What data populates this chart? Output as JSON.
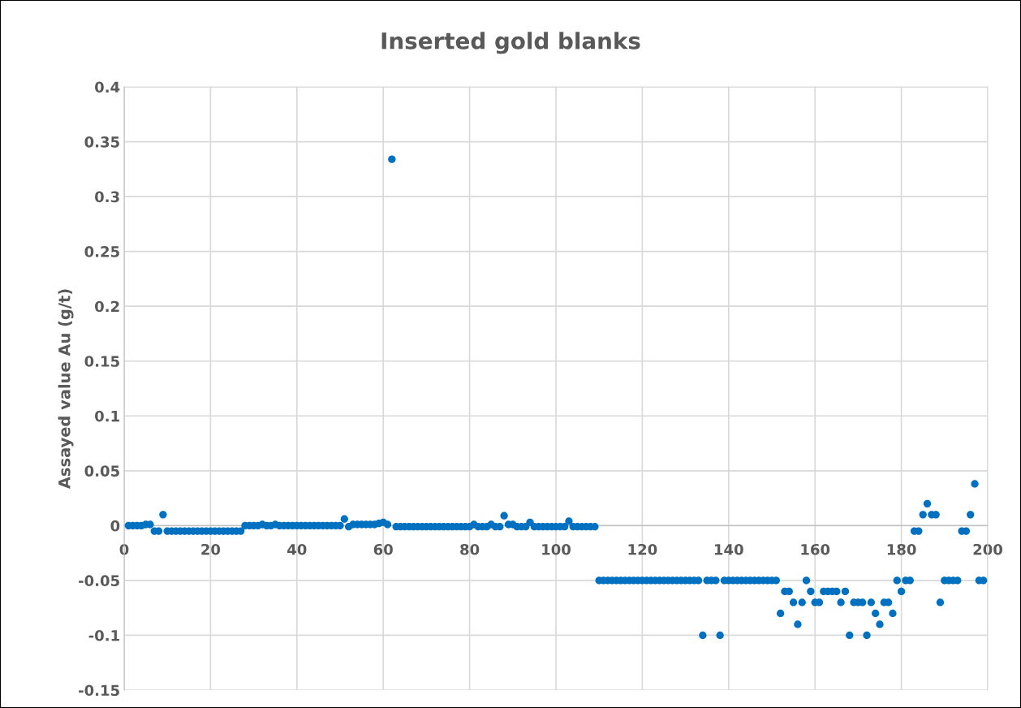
{
  "chart_data": {
    "type": "scatter",
    "title": "Inserted gold blanks",
    "ylabel": "Assayed value Au (g/t)",
    "x": [
      1,
      2,
      3,
      4,
      5,
      6,
      7,
      8,
      9,
      10,
      11,
      12,
      13,
      14,
      15,
      16,
      17,
      18,
      19,
      20,
      21,
      22,
      23,
      24,
      25,
      26,
      27,
      28,
      29,
      30,
      31,
      32,
      33,
      34,
      35,
      36,
      37,
      38,
      39,
      40,
      41,
      42,
      43,
      44,
      45,
      46,
      47,
      48,
      49,
      50,
      51,
      52,
      53,
      54,
      55,
      56,
      57,
      58,
      59,
      60,
      61,
      62,
      63,
      64,
      65,
      66,
      67,
      68,
      69,
      70,
      71,
      72,
      73,
      74,
      75,
      76,
      77,
      78,
      79,
      80,
      81,
      82,
      83,
      84,
      85,
      86,
      87,
      88,
      89,
      90,
      91,
      92,
      93,
      94,
      95,
      96,
      97,
      98,
      99,
      100,
      101,
      102,
      103,
      104,
      105,
      106,
      107,
      108,
      109,
      110,
      111,
      112,
      113,
      114,
      115,
      116,
      117,
      118,
      119,
      120,
      121,
      122,
      123,
      124,
      125,
      126,
      127,
      128,
      129,
      130,
      131,
      132,
      133,
      134,
      135,
      136,
      137,
      138,
      139,
      140,
      141,
      142,
      143,
      144,
      145,
      146,
      147,
      148,
      149,
      150,
      151,
      152,
      153,
      154,
      155,
      156,
      157,
      158,
      159,
      160,
      161,
      162,
      163,
      164,
      165,
      166,
      167,
      168,
      169,
      170,
      171,
      172,
      173,
      174,
      175,
      176,
      177,
      178,
      179,
      180,
      181,
      182,
      183,
      184,
      185,
      186,
      187,
      188,
      189,
      190,
      191,
      192,
      193,
      194,
      195,
      196,
      197,
      198,
      199
    ],
    "series": [
      {
        "color": "#0070c0",
        "values": [
          0,
          0,
          0,
          0,
          0.001,
          0.001,
          -0.005,
          -0.005,
          0.01,
          -0.005,
          -0.005,
          -0.005,
          -0.005,
          -0.005,
          -0.005,
          -0.005,
          -0.005,
          -0.005,
          -0.005,
          -0.005,
          -0.005,
          -0.005,
          -0.005,
          -0.005,
          -0.005,
          -0.005,
          -0.005,
          0,
          0,
          0,
          0,
          0.001,
          0,
          0,
          0.001,
          0,
          0,
          0,
          0,
          0,
          0,
          0,
          0,
          0,
          0,
          0,
          0,
          0,
          0,
          0,
          0.006,
          -0.001,
          0.001,
          0.001,
          0.001,
          0.001,
          0.001,
          0.001,
          0.002,
          0.003,
          0.001,
          0.334,
          -0.001,
          -0.001,
          -0.001,
          -0.001,
          -0.001,
          -0.001,
          -0.001,
          -0.001,
          -0.001,
          -0.001,
          -0.001,
          -0.001,
          -0.001,
          -0.001,
          -0.001,
          -0.001,
          -0.001,
          -0.001,
          0.001,
          -0.001,
          -0.001,
          -0.001,
          0.001,
          -0.001,
          -0.001,
          0.009,
          0.001,
          0.001,
          -0.001,
          -0.001,
          -0.001,
          0.003,
          -0.001,
          -0.001,
          -0.001,
          -0.001,
          -0.001,
          -0.001,
          -0.001,
          -0.001,
          0.004,
          -0.001,
          -0.001,
          -0.001,
          -0.001,
          -0.001,
          -0.001,
          -0.05,
          -0.05,
          -0.05,
          -0.05,
          -0.05,
          -0.05,
          -0.05,
          -0.05,
          -0.05,
          -0.05,
          -0.05,
          -0.05,
          -0.05,
          -0.05,
          -0.05,
          -0.05,
          -0.05,
          -0.05,
          -0.05,
          -0.05,
          -0.05,
          -0.05,
          -0.05,
          -0.05,
          -0.1,
          -0.05,
          -0.05,
          -0.05,
          -0.1,
          -0.05,
          -0.05,
          -0.05,
          -0.05,
          -0.05,
          -0.05,
          -0.05,
          -0.05,
          -0.05,
          -0.05,
          -0.05,
          -0.05,
          -0.05,
          -0.08,
          -0.06,
          -0.06,
          -0.07,
          -0.09,
          -0.07,
          -0.05,
          -0.06,
          -0.07,
          -0.07,
          -0.06,
          -0.06,
          -0.06,
          -0.06,
          -0.07,
          -0.06,
          -0.1,
          -0.07,
          -0.07,
          -0.07,
          -0.1,
          -0.07,
          -0.08,
          -0.09,
          -0.07,
          -0.07,
          -0.08,
          -0.05,
          -0.06,
          -0.05,
          -0.05,
          -0.005,
          -0.005,
          0.01,
          0.02,
          0.01,
          0.01,
          -0.07,
          -0.05,
          -0.05,
          -0.05,
          -0.05,
          -0.005,
          -0.005,
          0.01,
          0.038,
          -0.05,
          -0.05
        ]
      }
    ],
    "xlim": [
      0,
      200
    ],
    "xticks": [
      0,
      20,
      40,
      60,
      80,
      100,
      120,
      140,
      160,
      180,
      200
    ],
    "ylim": [
      -0.15,
      0.4
    ],
    "yticks": [
      -0.15,
      -0.1,
      -0.05,
      0,
      0.05,
      0.1,
      0.15,
      0.2,
      0.25,
      0.3,
      0.35,
      0.4
    ],
    "grid": true,
    "marker": "circle"
  }
}
